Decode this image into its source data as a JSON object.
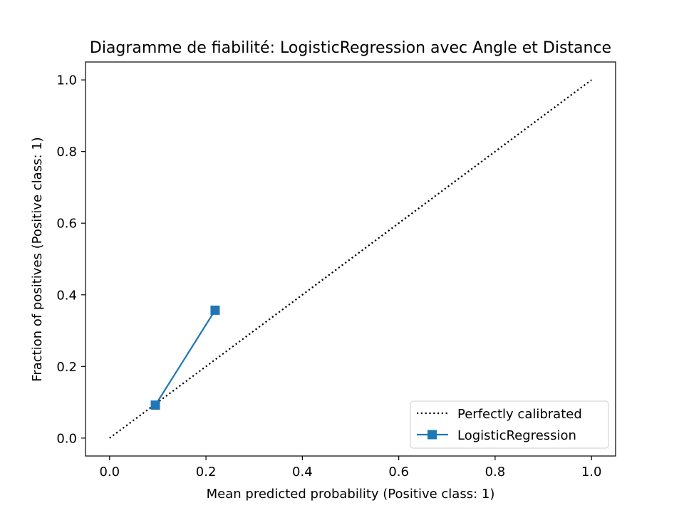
{
  "chart_data": {
    "type": "line",
    "title": "Diagramme de fiabilité: LogisticRegression avec Angle et Distance",
    "xlabel": "Mean predicted probability (Positive class: 1)",
    "ylabel": "Fraction of positives (Positive class: 1)",
    "xlim": [
      -0.05,
      1.05
    ],
    "ylim": [
      -0.05,
      1.05
    ],
    "xticks": [
      0.0,
      0.2,
      0.4,
      0.6,
      0.8,
      1.0
    ],
    "yticks": [
      0.0,
      0.2,
      0.4,
      0.6,
      0.8,
      1.0
    ],
    "xtick_labels": [
      "0.0",
      "0.2",
      "0.4",
      "0.6",
      "0.8",
      "1.0"
    ],
    "ytick_labels": [
      "0.0",
      "0.2",
      "0.4",
      "0.6",
      "0.8",
      "1.0"
    ],
    "grid": false,
    "legend_position": "bottom-right",
    "series": [
      {
        "name": "Perfectly calibrated",
        "style": "dotted",
        "color": "#000000",
        "marker": "none",
        "x": [
          0.0,
          1.0
        ],
        "y": [
          0.0,
          1.0
        ]
      },
      {
        "name": "LogisticRegression",
        "style": "solid",
        "color": "#1f77b4",
        "marker": "square",
        "x": [
          0.095,
          0.219
        ],
        "y": [
          0.092,
          0.357
        ]
      }
    ]
  }
}
